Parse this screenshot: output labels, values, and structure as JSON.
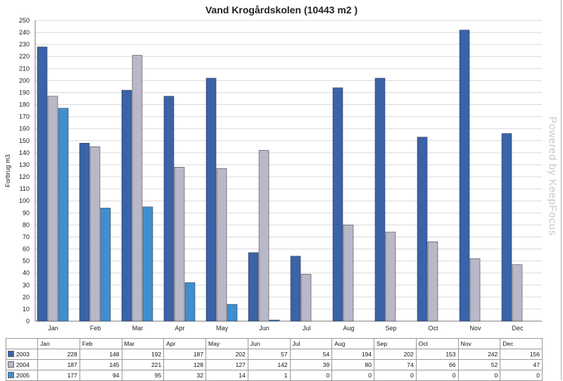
{
  "chart_data": {
    "type": "bar",
    "title": "Vand Krogårdskolen (10443 m2 )",
    "ylabel": "Forbrug m3",
    "xlabel": "",
    "ylim": [
      0,
      250
    ],
    "ytick_step": 10,
    "grid": true,
    "legend": "table-bottom",
    "categories": [
      "Jan",
      "Feb",
      "Mar",
      "Apr",
      "May",
      "Jun",
      "Jul",
      "Aug",
      "Sep",
      "Oct",
      "Nov",
      "Dec"
    ],
    "series": [
      {
        "name": "2003",
        "color": "#3a63a8",
        "values": [
          228,
          148,
          192,
          187,
          202,
          57,
          54,
          194,
          202,
          153,
          242,
          156
        ]
      },
      {
        "name": "2004",
        "color": "#b8b8c8",
        "values": [
          187,
          145,
          221,
          128,
          127,
          142,
          39,
          80,
          74,
          66,
          52,
          47
        ]
      },
      {
        "name": "2005",
        "color": "#3f8fcf",
        "values": [
          177,
          94,
          95,
          32,
          14,
          1,
          0,
          0,
          0,
          0,
          0,
          0
        ]
      }
    ]
  },
  "watermark": "Powered by KeepFocus"
}
